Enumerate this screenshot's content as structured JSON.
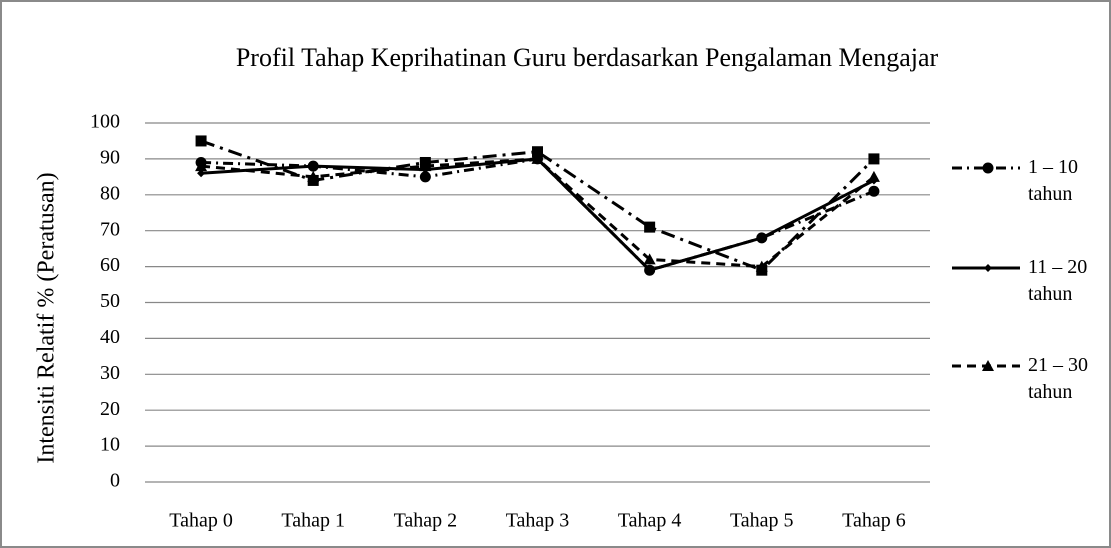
{
  "chart_data": {
    "type": "line",
    "title": "Profil Tahap Keprihatinan Guru berdasarkan Pengalaman Mengajar",
    "y_label": "Intensiti Relatif  %  (Peratusan)",
    "categories": [
      "Tahap 0",
      "Tahap 1",
      "Tahap 2",
      "Tahap 3",
      "Tahap 4",
      "Tahap 5",
      "Tahap 6"
    ],
    "series": [
      {
        "name": "1 – 10 tahun",
        "color": "#000000",
        "values": [
          89,
          88,
          85,
          90,
          59,
          68,
          81
        ]
      },
      {
        "name": "11 – 20 tahun",
        "color": "#000000",
        "values": [
          86,
          88,
          87,
          90,
          59,
          68,
          84
        ]
      },
      {
        "name": "21 – 30 tahun",
        "color": "#000000",
        "values": [
          88,
          85,
          88,
          90,
          62,
          60,
          85
        ]
      },
      {
        "color": "#000000",
        "values": [
          95,
          84,
          89,
          92,
          71,
          59,
          90
        ]
      }
    ],
    "ylim": [
      0,
      100
    ],
    "yticks": [
      0,
      10,
      20,
      30,
      40,
      50,
      60,
      70,
      80,
      90,
      100
    ],
    "grid": true
  }
}
